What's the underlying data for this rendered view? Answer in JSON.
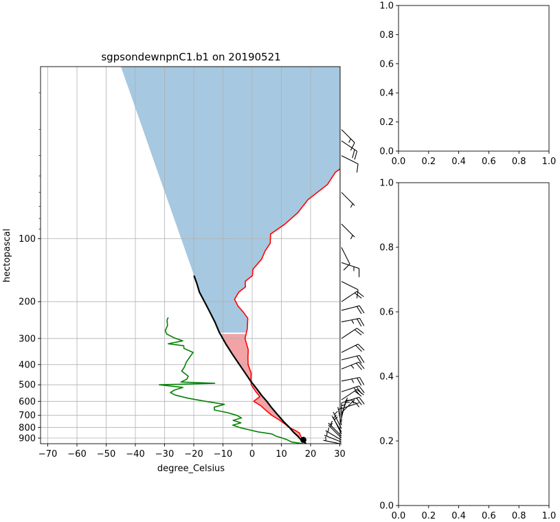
{
  "chart_data": [
    {
      "type": "line",
      "subtype": "skew-t",
      "title": "sgpsondewnpnC1.b1 on 20190521",
      "xlabel": "degree_Celsius",
      "ylabel": "hectopascal",
      "xlim": [
        -72,
        31
      ],
      "ylim": [
        957,
        15
      ],
      "y_scale": "log",
      "grid": true,
      "x_ticks": [
        -70,
        -60,
        -50,
        -40,
        -30,
        -20,
        -10,
        0,
        10,
        20,
        30
      ],
      "y_ticks": [
        100,
        200,
        300,
        400,
        500,
        600,
        700,
        800,
        900
      ],
      "series": [
        {
          "role": "temperature",
          "color": "#ff0000",
          "points": [
            [
              957,
              18.5
            ],
            [
              940,
              17.5
            ],
            [
              920,
              16.0
            ],
            [
              900,
              15.0
            ],
            [
              870,
              13.5
            ],
            [
              850,
              12.5
            ],
            [
              820,
              9.5
            ],
            [
              800,
              7.0
            ],
            [
              770,
              4.5
            ],
            [
              740,
              1.5
            ],
            [
              700,
              -3.0
            ],
            [
              660,
              -7.0
            ],
            [
              630,
              -10.0
            ],
            [
              600,
              -14.0
            ],
            [
              570,
              -13.5
            ],
            [
              540,
              -16.5
            ],
            [
              500,
              -20.5
            ],
            [
              470,
              -22.5
            ],
            [
              440,
              -24.5
            ],
            [
              400,
              -28.5
            ],
            [
              370,
              -31.0
            ],
            [
              340,
              -33.5
            ],
            [
              300,
              -38.5
            ],
            [
              270,
              -41.0
            ],
            [
              240,
              -44.5
            ],
            [
              225,
              -48.0
            ],
            [
              210,
              -52.0
            ],
            [
              195,
              -55.5
            ],
            [
              180,
              -56.5
            ],
            [
              170,
              -56.0
            ],
            [
              160,
              -58.0
            ],
            [
              150,
              -57.5
            ],
            [
              140,
              -59.5
            ],
            [
              125,
              -60.0
            ],
            [
              115,
              -61.5
            ],
            [
              105,
              -62.5
            ],
            [
              95,
              -65.5
            ],
            [
              85,
              -64.0
            ],
            [
              75,
              -63.5
            ],
            [
              65,
              -64.5
            ],
            [
              55,
              -63.0
            ],
            [
              48,
              -64.5
            ],
            [
              40,
              -62.0
            ],
            [
              34,
              -63.0
            ],
            [
              28,
              -62.0
            ],
            [
              24,
              -61.5
            ],
            [
              21,
              -60.5
            ],
            [
              18,
              -60.0
            ],
            [
              16,
              -58.5
            ],
            [
              15,
              -57.5
            ]
          ]
        },
        {
          "role": "dewpoint",
          "color": "#008000",
          "points": [
            [
              957,
              17.5
            ],
            [
              940,
              13.0
            ],
            [
              920,
              11.0
            ],
            [
              900,
              8.5
            ],
            [
              880,
              5.5
            ],
            [
              860,
              3.5
            ],
            [
              840,
              -2.0
            ],
            [
              820,
              -6.0
            ],
            [
              800,
              -10.0
            ],
            [
              780,
              -13.0
            ],
            [
              760,
              -11.0
            ],
            [
              740,
              -14.5
            ],
            [
              720,
              -12.5
            ],
            [
              700,
              -15.0
            ],
            [
              680,
              -19.0
            ],
            [
              660,
              -24.5
            ],
            [
              640,
              -25.5
            ],
            [
              620,
              -23.0
            ],
            [
              600,
              -30.5
            ],
            [
              580,
              -37.5
            ],
            [
              560,
              -43.0
            ],
            [
              545,
              -45.5
            ],
            [
              530,
              -45.0
            ],
            [
              515,
              -43.0
            ],
            [
              500,
              -52.0
            ],
            [
              492,
              -33.5
            ],
            [
              485,
              -45.5
            ],
            [
              470,
              -44.5
            ],
            [
              455,
              -45.0
            ],
            [
              430,
              -49.0
            ],
            [
              410,
              -49.5
            ],
            [
              390,
              -50.5
            ],
            [
              370,
              -51.0
            ],
            [
              350,
              -51.5
            ],
            [
              335,
              -56.0
            ],
            [
              325,
              -57.0
            ],
            [
              318,
              -63.0
            ],
            [
              308,
              -59.0
            ],
            [
              298,
              -63.0
            ],
            [
              285,
              -67.0
            ],
            [
              275,
              -68.5
            ],
            [
              260,
              -69.5
            ],
            [
              245,
              -71.5
            ],
            [
              238,
              -72.0
            ]
          ]
        },
        {
          "role": "parcel_profile",
          "color": "#000000",
          "points": [
            [
              957,
              18.5
            ],
            [
              920,
              15.6
            ],
            [
              880,
              13.0
            ],
            [
              840,
              10.0
            ],
            [
              800,
              7.2
            ],
            [
              760,
              4.0
            ],
            [
              720,
              0.8
            ],
            [
              680,
              -2.5
            ],
            [
              640,
              -6.0
            ],
            [
              600,
              -9.5
            ],
            [
              560,
              -13.5
            ],
            [
              520,
              -17.5
            ],
            [
              480,
              -22.0
            ],
            [
              440,
              -26.5
            ],
            [
              400,
              -31.5
            ],
            [
              360,
              -37.0
            ],
            [
              320,
              -43.0
            ],
            [
              280,
              -49.5
            ],
            [
              250,
              -54.5
            ],
            [
              220,
              -60.5
            ],
            [
              200,
              -65.0
            ],
            [
              180,
              -70.0
            ],
            [
              165,
              -73.5
            ],
            [
              150,
              -77.5
            ]
          ]
        }
      ],
      "lcl_marker": {
        "pressure": 917,
        "temperature": 16.2
      },
      "shading": [
        {
          "role": "cape",
          "color": "#f2a3a5"
        },
        {
          "role": "cin",
          "color": "#a6c8e0"
        }
      ],
      "wind_barbs": [
        {
          "pressure": 960,
          "u": -5,
          "v": 1
        },
        {
          "pressure": 940,
          "u": -5,
          "v": 2
        },
        {
          "pressure": 920,
          "u": -5,
          "v": 3
        },
        {
          "pressure": 900,
          "u": -4,
          "v": 4
        },
        {
          "pressure": 880,
          "u": -3,
          "v": 3
        },
        {
          "pressure": 860,
          "u": -2,
          "v": 4
        },
        {
          "pressure": 840,
          "u": -3,
          "v": 5
        },
        {
          "pressure": 810,
          "u": -2,
          "v": 4
        },
        {
          "pressure": 780,
          "u": -1,
          "v": 5
        },
        {
          "pressure": 750,
          "u": 0,
          "v": 5
        },
        {
          "pressure": 720,
          "u": 1,
          "v": 4
        },
        {
          "pressure": 700,
          "u": 1,
          "v": 3
        },
        {
          "pressure": 680,
          "u": 2,
          "v": 2
        },
        {
          "pressure": 650,
          "u": 3,
          "v": 1
        },
        {
          "pressure": 610,
          "u": 25,
          "v": 8
        },
        {
          "pressure": 590,
          "u": 15,
          "v": 10
        },
        {
          "pressure": 540,
          "u": 30,
          "v": 10
        },
        {
          "pressure": 480,
          "u": 25,
          "v": 5
        },
        {
          "pressure": 420,
          "u": 25,
          "v": 10
        },
        {
          "pressure": 380,
          "u": 20,
          "v": 5
        },
        {
          "pressure": 350,
          "u": 20,
          "v": 10
        },
        {
          "pressure": 300,
          "u": 15,
          "v": 10
        },
        {
          "pressure": 250,
          "u": 25,
          "v": 5
        },
        {
          "pressure": 220,
          "u": 20,
          "v": 5
        },
        {
          "pressure": 200,
          "u": 15,
          "v": 10
        },
        {
          "pressure": 160,
          "u": 10,
          "v": -5
        },
        {
          "pressure": 130,
          "u": 15,
          "v": -5
        },
        {
          "pressure": 110,
          "u": 5,
          "v": -10
        },
        {
          "pressure": 85,
          "u": 5,
          "v": -5
        },
        {
          "pressure": 60,
          "u": 5,
          "v": -5
        },
        {
          "pressure": 40,
          "u": 10,
          "v": -5
        },
        {
          "pressure": 34,
          "u": 15,
          "v": -10
        },
        {
          "pressure": 30,
          "u": 10,
          "v": -10
        }
      ]
    },
    {
      "type": "line",
      "title": "",
      "xlabel": "",
      "ylabel": "",
      "series": [],
      "xlim": [
        0,
        1
      ],
      "ylim": [
        0,
        1
      ],
      "x_ticks": [
        "0.0",
        "0.2",
        "0.4",
        "0.6",
        "0.8",
        "1.0"
      ],
      "y_ticks": [
        "0.0",
        "0.2",
        "0.4",
        "0.6",
        "0.8",
        "1.0"
      ]
    },
    {
      "type": "line",
      "title": "",
      "xlabel": "",
      "ylabel": "",
      "series": [],
      "xlim": [
        0,
        1
      ],
      "ylim": [
        0,
        1
      ],
      "x_ticks": [
        "0.0",
        "0.2",
        "0.4",
        "0.6",
        "0.8",
        "1.0"
      ],
      "y_ticks": [
        "0.0",
        "0.2",
        "0.4",
        "0.6",
        "0.8",
        "1.0"
      ]
    }
  ]
}
